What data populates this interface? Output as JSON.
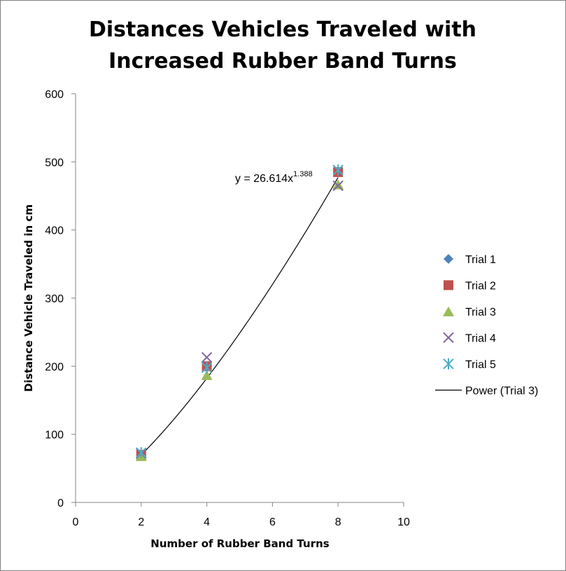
{
  "chart_data": {
    "type": "scatter",
    "title_lines": [
      "Distances Vehicles Traveled with",
      "Increased Rubber Band Turns"
    ],
    "xlabel": "Number of Rubber Band Turns",
    "ylabel": "Distance Vehicle Traveled in cm",
    "xlim": [
      0,
      10
    ],
    "ylim": [
      0,
      600
    ],
    "x_ticks": [
      0,
      2,
      4,
      6,
      8,
      10
    ],
    "y_ticks": [
      0,
      100,
      200,
      300,
      400,
      500,
      600
    ],
    "grid": false,
    "legend_position": "right",
    "series": [
      {
        "name": "Trial 1",
        "marker": "diamond",
        "color": "#4F81BD",
        "x": [
          2,
          4,
          8
        ],
        "y": [
          70,
          200,
          485
        ]
      },
      {
        "name": "Trial 2",
        "marker": "square",
        "color": "#C0504D",
        "x": [
          2,
          4,
          8
        ],
        "y": [
          70,
          200,
          485
        ]
      },
      {
        "name": "Trial 3",
        "marker": "triangle",
        "color": "#9BBB59",
        "x": [
          2,
          4,
          8
        ],
        "y": [
          68,
          187,
          467
        ]
      },
      {
        "name": "Trial 4",
        "marker": "x",
        "color": "#8064A2",
        "x": [
          2,
          4,
          8
        ],
        "y": [
          72,
          213,
          465
        ]
      },
      {
        "name": "Trial 5",
        "marker": "star",
        "color": "#4BACC6",
        "x": [
          2,
          4,
          8
        ],
        "y": [
          73,
          198,
          488
        ]
      }
    ],
    "trendline": {
      "name": "Power (Trial 3)",
      "type": "power",
      "a": 26.614,
      "b": 1.388,
      "x_range": [
        2,
        8
      ],
      "color": "#000000",
      "equation_main": "y = 26.614x",
      "equation_exp": "1.388"
    }
  }
}
